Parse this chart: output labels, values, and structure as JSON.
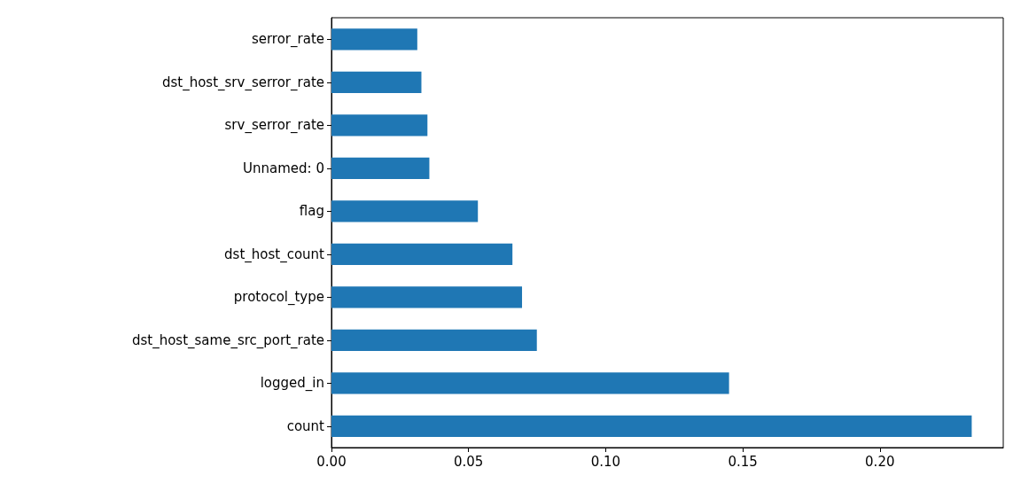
{
  "chart_data": {
    "type": "bar",
    "orientation": "horizontal",
    "categories": [
      "serror_rate",
      "dst_host_srv_serror_rate",
      "srv_serror_rate",
      "Unnamed: 0",
      "flag",
      "dst_host_count",
      "protocol_type",
      "dst_host_same_src_port_rate",
      "logged_in",
      "count"
    ],
    "values": [
      0.0313,
      0.0328,
      0.035,
      0.0357,
      0.0534,
      0.066,
      0.0695,
      0.0749,
      0.145,
      0.2335
    ],
    "color": "#1f77b4",
    "xlim": [
      0,
      0.245
    ],
    "xticks": [
      {
        "value": 0,
        "label": "0.00"
      },
      {
        "value": 0.05,
        "label": "0.05"
      },
      {
        "value": 0.1,
        "label": "0.10"
      },
      {
        "value": 0.15,
        "label": "0.15"
      },
      {
        "value": 0.2,
        "label": "0.20"
      }
    ],
    "grid": false
  }
}
